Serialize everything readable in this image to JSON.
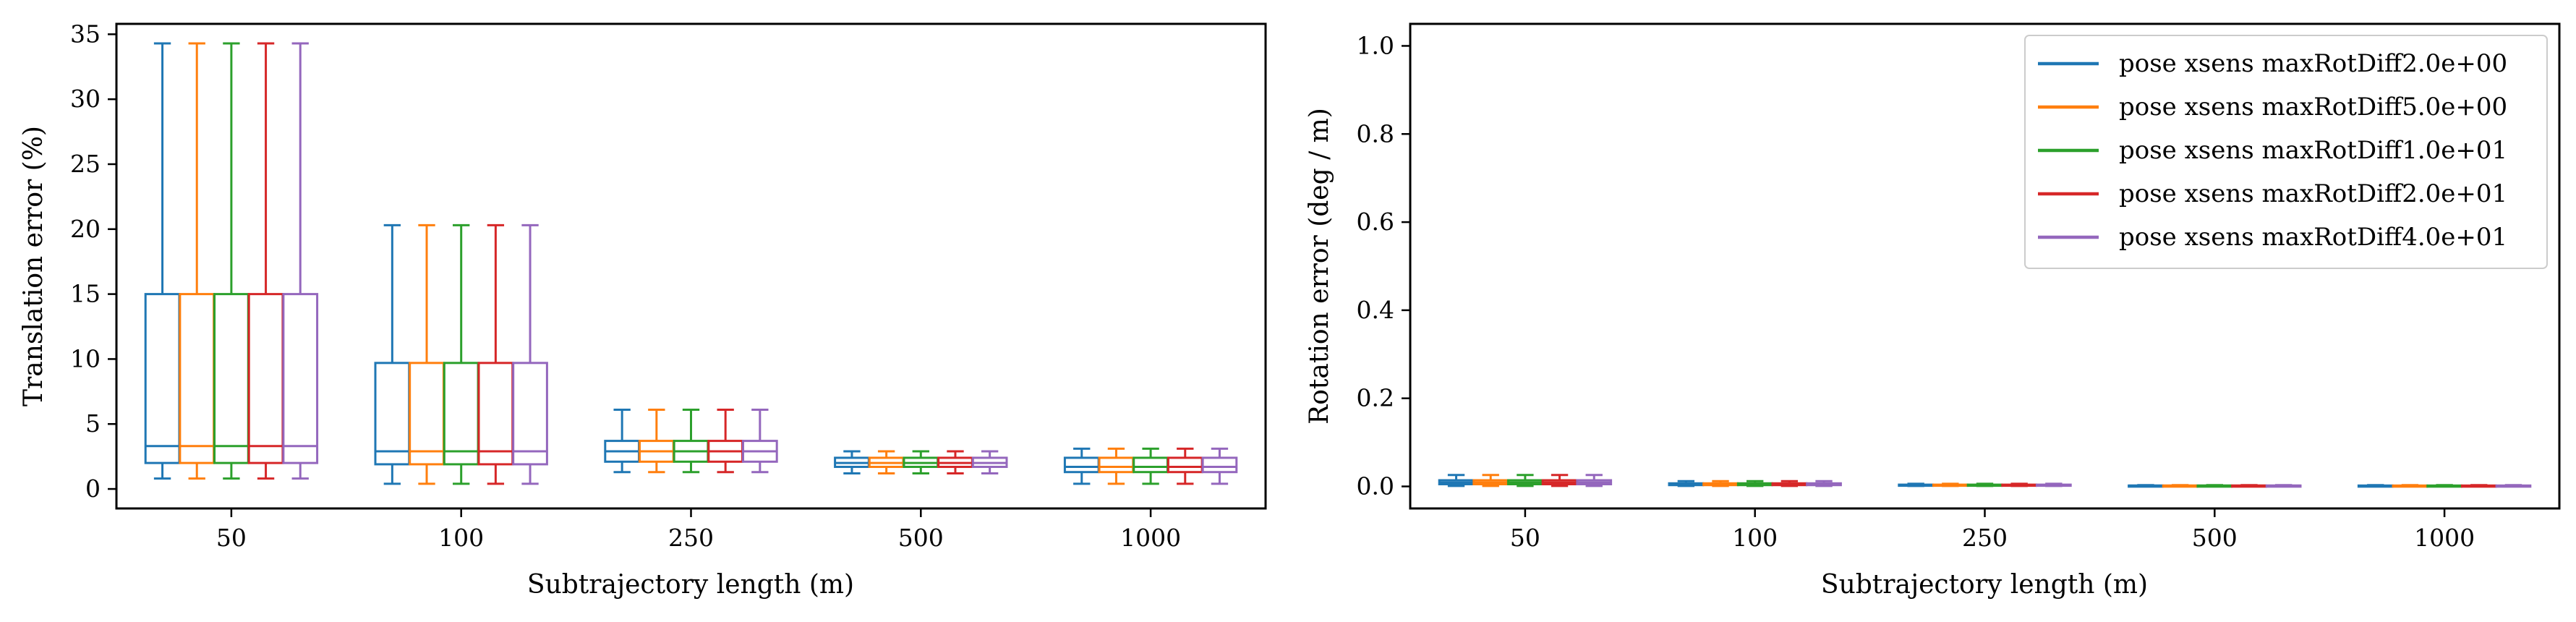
{
  "chart_data": [
    {
      "type": "box",
      "xlabel": "Subtrajectory length (m)",
      "ylabel": "Translation error (%)",
      "categories": [
        "50",
        "100",
        "250",
        "500",
        "1000"
      ],
      "ylim": [
        -1.5,
        35.8
      ],
      "yticks": [
        0,
        5,
        10,
        15,
        20,
        25,
        30,
        35
      ],
      "grid": false,
      "series": [
        {
          "name": "pose xsens maxRotDiff2.0e+00",
          "color": "#1f77b4",
          "boxes": [
            {
              "whislo": 0.8,
              "q1": 2.0,
              "med": 3.3,
              "q3": 15.0,
              "whishi": 34.3
            },
            {
              "whislo": 0.4,
              "q1": 1.9,
              "med": 2.9,
              "q3": 9.7,
              "whishi": 20.3
            },
            {
              "whislo": 1.3,
              "q1": 2.1,
              "med": 2.9,
              "q3": 3.7,
              "whishi": 6.1
            },
            {
              "whislo": 1.2,
              "q1": 1.7,
              "med": 2.0,
              "q3": 2.4,
              "whishi": 2.9
            },
            {
              "whislo": 0.4,
              "q1": 1.3,
              "med": 1.7,
              "q3": 2.4,
              "whishi": 3.1
            }
          ]
        },
        {
          "name": "pose xsens maxRotDiff5.0e+00",
          "color": "#ff7f0e",
          "boxes": [
            {
              "whislo": 0.8,
              "q1": 2.0,
              "med": 3.3,
              "q3": 15.0,
              "whishi": 34.3
            },
            {
              "whislo": 0.4,
              "q1": 1.9,
              "med": 2.9,
              "q3": 9.7,
              "whishi": 20.3
            },
            {
              "whislo": 1.3,
              "q1": 2.1,
              "med": 2.9,
              "q3": 3.7,
              "whishi": 6.1
            },
            {
              "whislo": 1.2,
              "q1": 1.7,
              "med": 2.0,
              "q3": 2.4,
              "whishi": 2.9
            },
            {
              "whislo": 0.4,
              "q1": 1.3,
              "med": 1.7,
              "q3": 2.4,
              "whishi": 3.1
            }
          ]
        },
        {
          "name": "pose xsens maxRotDiff1.0e+01",
          "color": "#2ca02c",
          "boxes": [
            {
              "whislo": 0.8,
              "q1": 2.0,
              "med": 3.3,
              "q3": 15.0,
              "whishi": 34.3
            },
            {
              "whislo": 0.4,
              "q1": 1.9,
              "med": 2.9,
              "q3": 9.7,
              "whishi": 20.3
            },
            {
              "whislo": 1.3,
              "q1": 2.1,
              "med": 2.9,
              "q3": 3.7,
              "whishi": 6.1
            },
            {
              "whislo": 1.2,
              "q1": 1.7,
              "med": 2.0,
              "q3": 2.4,
              "whishi": 2.9
            },
            {
              "whislo": 0.4,
              "q1": 1.3,
              "med": 1.7,
              "q3": 2.4,
              "whishi": 3.1
            }
          ]
        },
        {
          "name": "pose xsens maxRotDiff2.0e+01",
          "color": "#d62728",
          "boxes": [
            {
              "whislo": 0.8,
              "q1": 2.0,
              "med": 3.3,
              "q3": 15.0,
              "whishi": 34.3
            },
            {
              "whislo": 0.4,
              "q1": 1.9,
              "med": 2.9,
              "q3": 9.7,
              "whishi": 20.3
            },
            {
              "whislo": 1.3,
              "q1": 2.1,
              "med": 2.9,
              "q3": 3.7,
              "whishi": 6.1
            },
            {
              "whislo": 1.2,
              "q1": 1.7,
              "med": 2.0,
              "q3": 2.4,
              "whishi": 2.9
            },
            {
              "whislo": 0.4,
              "q1": 1.3,
              "med": 1.7,
              "q3": 2.4,
              "whishi": 3.1
            }
          ]
        },
        {
          "name": "pose xsens maxRotDiff4.0e+01",
          "color": "#9467bd",
          "boxes": [
            {
              "whislo": 0.8,
              "q1": 2.0,
              "med": 3.3,
              "q3": 15.0,
              "whishi": 34.3
            },
            {
              "whislo": 0.4,
              "q1": 1.9,
              "med": 2.9,
              "q3": 9.7,
              "whishi": 20.3
            },
            {
              "whislo": 1.3,
              "q1": 2.1,
              "med": 2.9,
              "q3": 3.7,
              "whishi": 6.1
            },
            {
              "whislo": 1.2,
              "q1": 1.7,
              "med": 2.0,
              "q3": 2.4,
              "whishi": 2.9
            },
            {
              "whislo": 0.4,
              "q1": 1.3,
              "med": 1.7,
              "q3": 2.4,
              "whishi": 3.1
            }
          ]
        }
      ]
    },
    {
      "type": "box",
      "xlabel": "Subtrajectory length (m)",
      "ylabel": "Rotation error (deg / m)",
      "categories": [
        "50",
        "100",
        "250",
        "500",
        "1000"
      ],
      "ylim": [
        -0.05,
        1.05
      ],
      "yticks": [
        "0.0",
        "0.2",
        "0.4",
        "0.6",
        "0.8",
        "1.0"
      ],
      "grid": false,
      "legend_position": "top-right",
      "series": [
        {
          "name": "pose xsens maxRotDiff2.0e+00",
          "color": "#1f77b4",
          "boxes": [
            {
              "whislo": 0.001,
              "q1": 0.005,
              "med": 0.009,
              "q3": 0.014,
              "whishi": 0.026
            },
            {
              "whislo": 0.001,
              "q1": 0.003,
              "med": 0.005,
              "q3": 0.007,
              "whishi": 0.012
            },
            {
              "whislo": 0.001,
              "q1": 0.002,
              "med": 0.003,
              "q3": 0.004,
              "whishi": 0.006
            },
            {
              "whislo": 0.001,
              "q1": 0.001,
              "med": 0.002,
              "q3": 0.002,
              "whishi": 0.003
            },
            {
              "whislo": 0.0,
              "q1": 0.001,
              "med": 0.001,
              "q3": 0.002,
              "whishi": 0.003
            }
          ]
        },
        {
          "name": "pose xsens maxRotDiff5.0e+00",
          "color": "#ff7f0e",
          "boxes": [
            {
              "whislo": 0.001,
              "q1": 0.005,
              "med": 0.009,
              "q3": 0.014,
              "whishi": 0.026
            },
            {
              "whislo": 0.001,
              "q1": 0.003,
              "med": 0.005,
              "q3": 0.007,
              "whishi": 0.012
            },
            {
              "whislo": 0.001,
              "q1": 0.002,
              "med": 0.003,
              "q3": 0.004,
              "whishi": 0.006
            },
            {
              "whislo": 0.001,
              "q1": 0.001,
              "med": 0.002,
              "q3": 0.002,
              "whishi": 0.003
            },
            {
              "whislo": 0.0,
              "q1": 0.001,
              "med": 0.001,
              "q3": 0.002,
              "whishi": 0.003
            }
          ]
        },
        {
          "name": "pose xsens maxRotDiff1.0e+01",
          "color": "#2ca02c",
          "boxes": [
            {
              "whislo": 0.001,
              "q1": 0.005,
              "med": 0.009,
              "q3": 0.014,
              "whishi": 0.026
            },
            {
              "whislo": 0.001,
              "q1": 0.003,
              "med": 0.005,
              "q3": 0.007,
              "whishi": 0.012
            },
            {
              "whislo": 0.001,
              "q1": 0.002,
              "med": 0.003,
              "q3": 0.004,
              "whishi": 0.006
            },
            {
              "whislo": 0.001,
              "q1": 0.001,
              "med": 0.002,
              "q3": 0.002,
              "whishi": 0.003
            },
            {
              "whislo": 0.0,
              "q1": 0.001,
              "med": 0.001,
              "q3": 0.002,
              "whishi": 0.003
            }
          ]
        },
        {
          "name": "pose xsens maxRotDiff2.0e+01",
          "color": "#d62728",
          "boxes": [
            {
              "whislo": 0.001,
              "q1": 0.005,
              "med": 0.009,
              "q3": 0.014,
              "whishi": 0.026
            },
            {
              "whislo": 0.001,
              "q1": 0.003,
              "med": 0.005,
              "q3": 0.007,
              "whishi": 0.012
            },
            {
              "whislo": 0.001,
              "q1": 0.002,
              "med": 0.003,
              "q3": 0.004,
              "whishi": 0.006
            },
            {
              "whislo": 0.001,
              "q1": 0.001,
              "med": 0.002,
              "q3": 0.002,
              "whishi": 0.003
            },
            {
              "whislo": 0.0,
              "q1": 0.001,
              "med": 0.001,
              "q3": 0.002,
              "whishi": 0.003
            }
          ]
        },
        {
          "name": "pose xsens maxRotDiff4.0e+01",
          "color": "#9467bd",
          "boxes": [
            {
              "whislo": 0.001,
              "q1": 0.005,
              "med": 0.009,
              "q3": 0.014,
              "whishi": 0.026
            },
            {
              "whislo": 0.001,
              "q1": 0.003,
              "med": 0.005,
              "q3": 0.007,
              "whishi": 0.012
            },
            {
              "whislo": 0.001,
              "q1": 0.002,
              "med": 0.003,
              "q3": 0.004,
              "whishi": 0.006
            },
            {
              "whislo": 0.001,
              "q1": 0.001,
              "med": 0.002,
              "q3": 0.002,
              "whishi": 0.003
            },
            {
              "whislo": 0.0,
              "q1": 0.001,
              "med": 0.001,
              "q3": 0.002,
              "whishi": 0.003
            }
          ]
        }
      ]
    }
  ]
}
